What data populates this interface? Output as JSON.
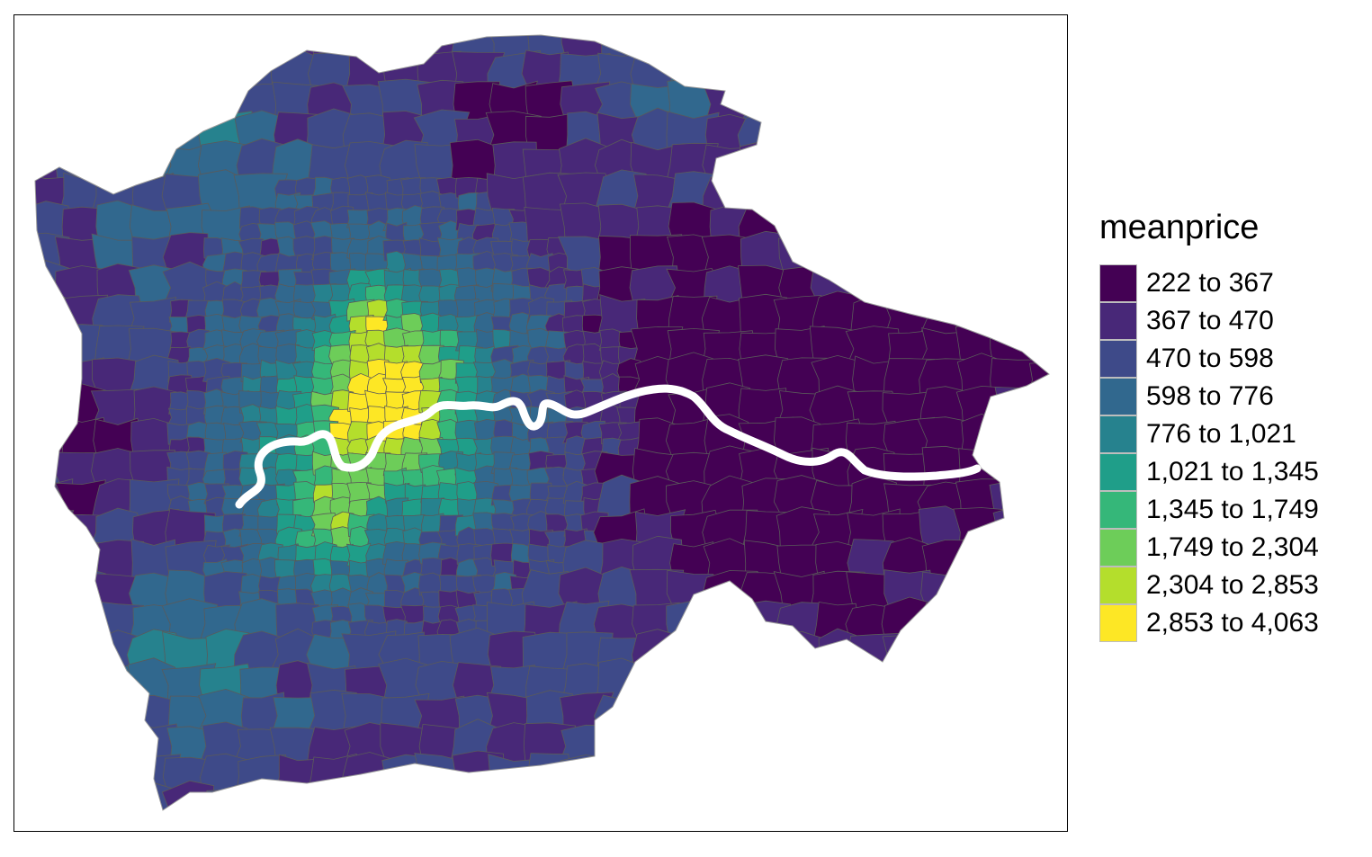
{
  "legend": {
    "title": "meanprice",
    "classes": [
      {
        "label": "222 to 367",
        "color": "#440154"
      },
      {
        "label": "367 to 470",
        "color": "#482878"
      },
      {
        "label": "470 to 598",
        "color": "#3E4A89"
      },
      {
        "label": "598 to 776",
        "color": "#31688E"
      },
      {
        "label": "776 to 1,021",
        "color": "#26828E"
      },
      {
        "label": "1,021 to 1,345",
        "color": "#1F9E89"
      },
      {
        "label": "1,345 to 1,749",
        "color": "#35B779"
      },
      {
        "label": "1,749 to 2,304",
        "color": "#6DCD59"
      },
      {
        "label": "2,304 to 2,853",
        "color": "#B4DE2C"
      },
      {
        "label": "2,853 to 4,063",
        "color": "#FDE725"
      }
    ]
  },
  "map": {
    "region_border_color": "#5a5a5a",
    "river_color": "#ffffff"
  }
}
